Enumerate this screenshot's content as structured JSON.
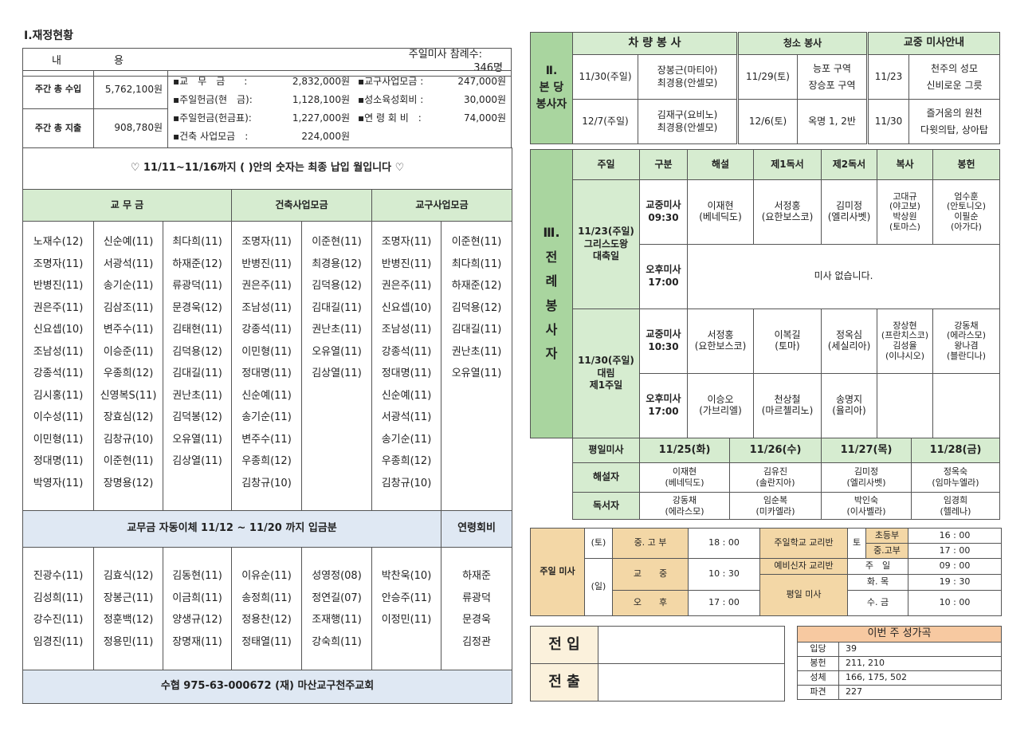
{
  "section1": {
    "title": "Ⅰ.재정현황",
    "head_left_1": "내",
    "head_left_2": "용",
    "attendance_label": "주일미사 참례수:",
    "attendance_value": "346명",
    "income_label": "주간 총 수입",
    "income_value": "5,762,100원",
    "expense_label": "주간 총 지출",
    "expense_value": "908,780원",
    "details_left": [
      {
        "label": "▪교　무　금　　:",
        "value": "2,832,000원"
      },
      {
        "label": "▪주일헌금(현　금):",
        "value": "1,128,100원"
      },
      {
        "label": "▪주일헌금(헌금표):",
        "value": "1,227,000원"
      },
      {
        "label": "▪건축 사업모금　:",
        "value": "224,000원"
      }
    ],
    "details_right": [
      {
        "label": "▪교구사업모금 :",
        "value": "247,000원"
      },
      {
        "label": "▪성소육성회비 :",
        "value": "30,000원"
      },
      {
        "label": "▪연 령 회 비　:",
        "value": "74,000원"
      }
    ],
    "notice": "♡ 11/11~11/16까지 ( )안의 숫자는 최종 납입 월입니다 ♡",
    "group_headers": [
      "교 무 금",
      "건축사업모금",
      "교구사업모금"
    ],
    "name_columns": [
      [
        "노재수(12)",
        "조명자(11)",
        "반병진(11)",
        "권은주(11)",
        "신요셉(10)",
        "조남성(11)",
        "강종석(11)",
        "김시홍(11)",
        "이수성(11)",
        "이민형(11)",
        "정대명(11)",
        "박영자(11)"
      ],
      [
        "신순예(11)",
        "서광석(11)",
        "송기순(11)",
        "김삼조(11)",
        "변주수(11)",
        "이승준(11)",
        "우종희(12)",
        "신영복S(11)",
        "장효심(12)",
        "김창규(10)",
        "이준현(11)",
        "장명용(12)"
      ],
      [
        "최다희(11)",
        "하재준(12)",
        "류광덕(11)",
        "문경욱(12)",
        "김태현(11)",
        "김덕용(12)",
        "김대길(11)",
        "권난초(11)",
        "김덕봉(12)",
        "오유열(11)",
        "김상열(11)"
      ],
      [
        "조명자(11)",
        "반병진(11)",
        "권은주(11)",
        "조남성(11)",
        "강종석(11)",
        "이민형(11)",
        "정대명(11)",
        "신순예(11)",
        "송기순(11)",
        "변주수(11)",
        "우종희(12)",
        "김창규(10)"
      ],
      [
        "이준현(11)",
        "최경용(12)",
        "김덕용(12)",
        "김대길(11)",
        "권난초(11)",
        "오유열(11)",
        "김상열(11)"
      ],
      [
        "조명자(11)",
        "반병진(11)",
        "권은주(11)",
        "신요셉(10)",
        "조남성(11)",
        "강종석(11)",
        "정대명(11)",
        "신순예(11)",
        "서광석(11)",
        "송기순(11)",
        "우종희(12)",
        "김창규(10)"
      ],
      [
        "이준현(11)",
        "최다희(11)",
        "하재준(12)",
        "김덕용(12)",
        "김대길(11)",
        "권난초(11)",
        "오유열(11)"
      ]
    ],
    "auto_header": "교무금 자동이체 11/12 ~ 11/20 까지 입금분",
    "yeonryeong_header": "연령회비",
    "auto_columns": [
      [
        "진광수(11)",
        "김성희(11)",
        "강수진(11)",
        "임경진(11)"
      ],
      [
        "김효식(12)",
        "장봉근(11)",
        "정훈백(12)",
        "정용민(11)"
      ],
      [
        "김동현(11)",
        "이금희(11)",
        "양생규(12)",
        "장명재(11)"
      ],
      [
        "이유순(11)",
        "송정희(11)",
        "정용찬(12)",
        "정태열(11)"
      ],
      [
        "성영정(08)",
        "정연길(07)",
        "조재행(11)",
        "강숙희(11)"
      ],
      [
        "박찬욱(10)",
        "안승주(11)",
        "이정민(11)"
      ],
      [
        "하재준",
        "류광덕",
        "문경욱",
        "김정관"
      ]
    ],
    "account": "수협 975-63-000672 (재) 마산교구천주교회"
  },
  "section2": {
    "side": [
      "Ⅱ.",
      "본 당",
      "봉사자"
    ],
    "headers": [
      "차 량 봉 사",
      "청소 봉사",
      "교중 미사안내"
    ],
    "rows": [
      {
        "car_date": "11/30(주일)",
        "car_names": [
          "장봉근(마티아)",
          "최경용(안셀모)"
        ],
        "clean_date": "11/29(토)",
        "clean_area": [
          "능포 구역",
          "장승포 구역"
        ],
        "mass_date": "11/23",
        "mass_songs": [
          "천주의 성모",
          "신비로운 그릇"
        ]
      },
      {
        "car_date": "12/7(주일)",
        "car_names": [
          "김재구(요비노)",
          "최경용(안셀모)"
        ],
        "clean_date": "12/6(토)",
        "clean_area": [
          "옥명 1, 2반"
        ],
        "mass_date": "11/30",
        "mass_songs": [
          "즐거움의 원천",
          "다윗의탑, 상아탑"
        ]
      }
    ]
  },
  "section3": {
    "side": [
      "Ⅲ.",
      "전",
      "례",
      "봉",
      "사",
      "자"
    ],
    "headers": [
      "주일",
      "구분",
      "해설",
      "제1독서",
      "제2독서",
      "복사",
      "봉헌"
    ],
    "sundays": [
      {
        "day": [
          "11/23(주일)",
          "그리스도왕",
          "대축일"
        ],
        "masses": [
          {
            "type": [
              "교중미사",
              "09:30"
            ],
            "cells": [
              [
                "이재현",
                "(베네딕도)"
              ],
              [
                "서정홍",
                "(요한보스코)"
              ],
              [
                "김미정",
                "(엘리사벳)"
              ],
              [
                "고대규",
                "(야고보)",
                "박상원",
                "(토마스)"
              ],
              [
                "엄수훈",
                "(안토니오)",
                "이필순",
                "(아가다)"
              ]
            ]
          },
          {
            "type": [
              "오후미사",
              "17:00"
            ],
            "none": "미사 없습니다."
          }
        ]
      },
      {
        "day": [
          "11/30(주일)",
          "대림",
          "제1주일"
        ],
        "masses": [
          {
            "type": [
              "교중미사",
              "10:30"
            ],
            "cells": [
              [
                "서정홍",
                "(요한보스코)"
              ],
              [
                "이복길",
                "(토마)"
              ],
              [
                "정옥심",
                "(세실리아)"
              ],
              [
                "장상현",
                "(프란치스코)",
                "김성율",
                "(이냐시오)"
              ],
              [
                "강동채",
                "(에라스모)",
                "왕나겸",
                "(블란디나)"
              ]
            ]
          },
          {
            "type": [
              "오후미사",
              "17:00"
            ],
            "cells": [
              [
                "이승오",
                "(가브리엘)"
              ],
              [
                "천상철",
                "(마르첼리노)"
              ],
              [
                "송명지",
                "(율리아)"
              ],
              [],
              []
            ]
          }
        ]
      }
    ],
    "weekday_label": "평일미사",
    "weekdays": [
      "11/25(화)",
      "11/26(수)",
      "11/27(목)",
      "11/28(금)"
    ],
    "commentator_label": "해설자",
    "commentators": [
      [
        "이재현",
        "(베네딕도)"
      ],
      [
        "김유진",
        "(솔란지아)"
      ],
      [
        "김미정",
        "(엘리사벳)"
      ],
      [
        "정옥숙",
        "(임마누엘라)"
      ]
    ],
    "reader_label": "독서자",
    "readers": [
      [
        "강동채",
        "(에라스모)"
      ],
      [
        "임순복",
        "(미카엘라)"
      ],
      [
        "박인숙",
        "(이사벨라)"
      ],
      [
        "임경희",
        "(헬레나)"
      ]
    ]
  },
  "schedule": {
    "sunday_mass": "주일 미사",
    "sat": "(토)",
    "sun": "(일)",
    "sat_mass": "중. 고 부",
    "sat_time": "18 : 00",
    "main_mass": "교　　중",
    "main_time": "10 : 30",
    "pm_mass": "오　　후",
    "pm_time": "17 : 00",
    "sunday_school": "주일학교 교리반",
    "sat_short": "토",
    "elem": "초등부",
    "elem_time": "16 : 00",
    "mid": "중.고부",
    "mid_time": "17 : 00",
    "catechumen": "예비신자 교리반",
    "cat_day": "주　일",
    "cat_time": "09 : 00",
    "weekday_mass": "평일 미사",
    "wd1": "화. 목",
    "wd1_time": "19 : 30",
    "wd2": "수. 금",
    "wd2_time": "10 : 00"
  },
  "transfer": {
    "in": "전 입",
    "out": "전 출",
    "in_value": "",
    "out_value": ""
  },
  "hymns": {
    "title": "이번 주 성가곡",
    "rows": [
      [
        "입당",
        "39"
      ],
      [
        "봉헌",
        "211, 210"
      ],
      [
        "성체",
        "166, 175, 502"
      ],
      [
        "파견",
        "227"
      ]
    ]
  }
}
